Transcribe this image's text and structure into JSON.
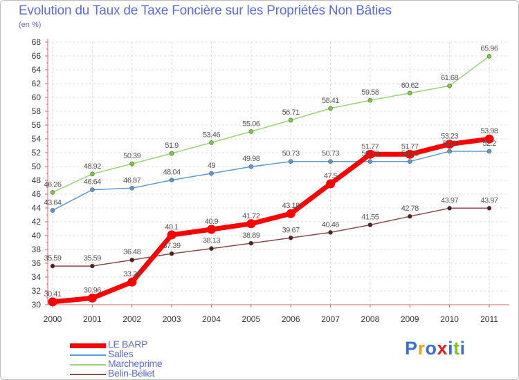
{
  "chart_data": {
    "type": "line",
    "title": "Evolution du Taux de Taxe Foncière sur les Propriétés Non Bâties",
    "subtitle": "(en %)",
    "x": [
      "2000",
      "2001",
      "2002",
      "2003",
      "2004",
      "2005",
      "2006",
      "2007",
      "2008",
      "2009",
      "2010",
      "2011"
    ],
    "ylim": [
      30,
      68
    ],
    "yticks": [
      30,
      32,
      34,
      36,
      38,
      40,
      42,
      44,
      46,
      48,
      50,
      52,
      54,
      56,
      58,
      60,
      62,
      64,
      66,
      68
    ],
    "grid": true,
    "legend_position": "bottom-left",
    "series": [
      {
        "name": "LE BARP",
        "color": "#ff0000",
        "emphasized": true,
        "values": [
          30.41,
          30.96,
          33.28,
          40.1,
          40.9,
          41.72,
          43.18,
          47.5,
          51.77,
          51.77,
          53.23,
          53.98
        ],
        "labels": [
          "30.41",
          "30.96",
          "33.28",
          "40.1",
          "40.9",
          "41.72",
          "43.18",
          "47.5",
          "51.77",
          "51.77",
          "53.23",
          "53.98"
        ]
      },
      {
        "name": "Salles",
        "color": "#5b9bd5",
        "marker_fill": "#5b9bd5",
        "values": [
          43.64,
          46.64,
          46.87,
          48.04,
          49,
          49.98,
          50.73,
          50.73,
          50.73,
          50.73,
          52.2,
          52.2
        ],
        "labels": [
          "43.64",
          "46.64",
          "46.87",
          "48.04",
          "49",
          "49.98",
          "50.73",
          "50.73",
          "50.73",
          "50.73",
          "52.2",
          "52.2"
        ]
      },
      {
        "name": "Marcheprime",
        "color": "#99d37a",
        "marker_fill": "#7ccb3a",
        "values": [
          46.26,
          48.92,
          50.39,
          51.9,
          53.46,
          55.06,
          56.71,
          58.41,
          59.58,
          60.62,
          61.68,
          65.96
        ],
        "labels": [
          "46.26",
          "48.92",
          "50.39",
          "51.9",
          "53.46",
          "55.06",
          "56.71",
          "58.41",
          "59.58",
          "60.62",
          "61.68",
          "65.96"
        ]
      },
      {
        "name": "Belin-Béliet",
        "color": "#8b4a4a",
        "marker_fill": "#5a1f1f",
        "values": [
          35.59,
          35.59,
          36.48,
          37.39,
          38.13,
          38.89,
          39.67,
          40.46,
          41.55,
          42.78,
          43.97,
          43.97
        ],
        "labels": [
          "35.59",
          "35.59",
          "36.48",
          "37.39",
          "38.13",
          "38.89",
          "39.67",
          "40.46",
          "41.55",
          "42.78",
          "43.97",
          "43.97"
        ]
      }
    ]
  },
  "logo": {
    "text": "Proxiti",
    "colors": [
      "#3b6fd6",
      "#f0a020",
      "#3b6fd6",
      "#e02020",
      "#3b6fd6",
      "#7cc030",
      "#3b6fd6"
    ]
  }
}
